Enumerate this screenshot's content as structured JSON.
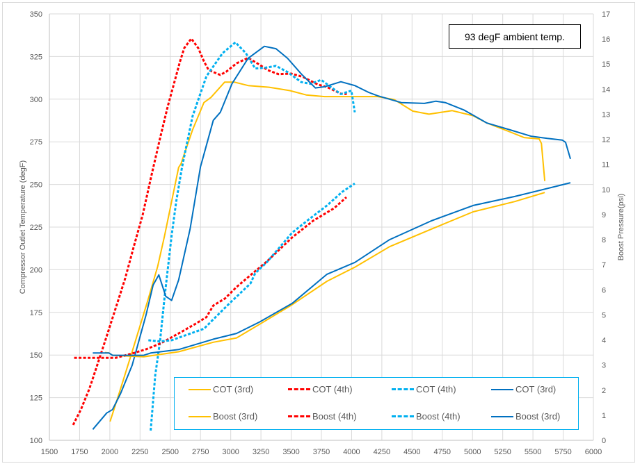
{
  "annotation": "93 degF ambient temp.",
  "colors": {
    "yellow": "#ffc000",
    "red": "#ff0000",
    "cyan": "#00b0f0",
    "blue": "#0070c0",
    "grid": "#d9d9d9"
  },
  "chart_data": {
    "type": "line",
    "title": "",
    "xlabel": "",
    "ylabel": "Compressor Outlet Temperature (degF)",
    "y2label": "Boost Pressure(psi)",
    "xlim": [
      1500,
      6000
    ],
    "ylim": [
      100,
      350
    ],
    "y2lim": [
      0,
      17
    ],
    "grid": true,
    "legend_position": "bottom-right",
    "xticks": [
      "1500",
      "1750",
      "2000",
      "2250",
      "2500",
      "2750",
      "3000",
      "3250",
      "3500",
      "3750",
      "4000",
      "4250",
      "4500",
      "4750",
      "5000",
      "5250",
      "5500",
      "5750",
      "6000"
    ],
    "yticks": [
      "100",
      "125",
      "150",
      "175",
      "200",
      "225",
      "250",
      "275",
      "300",
      "325",
      "350"
    ],
    "y2ticks": [
      "0",
      "1",
      "2",
      "3",
      "4",
      "5",
      "6",
      "7",
      "8",
      "9",
      "10",
      "11",
      "12",
      "13",
      "14",
      "15",
      "16",
      "17"
    ],
    "series": [
      {
        "name": "COT (3rd)",
        "axis": "left",
        "color": "#ffc000",
        "dashed": false,
        "points": [
          [
            2002,
            111
          ],
          [
            2070,
            126
          ],
          [
            2185,
            152
          ],
          [
            2318,
            183
          ],
          [
            2396,
            202
          ],
          [
            2453,
            220
          ],
          [
            2511,
            240
          ],
          [
            2569,
            260
          ],
          [
            2588,
            262
          ],
          [
            2684,
            282
          ],
          [
            2778,
            298
          ],
          [
            2836,
            301
          ],
          [
            2950,
            310
          ],
          [
            3029,
            310
          ],
          [
            3144,
            308
          ],
          [
            3317,
            307
          ],
          [
            3490,
            305
          ],
          [
            3624,
            302.5
          ],
          [
            3777,
            301.5
          ],
          [
            3969,
            301.5
          ],
          [
            4216,
            301.5
          ],
          [
            4352,
            299.8
          ],
          [
            4506,
            293
          ],
          [
            4640,
            291.2
          ],
          [
            4832,
            293.3
          ],
          [
            5005,
            290.3
          ],
          [
            5120,
            286
          ],
          [
            5311,
            280.8
          ],
          [
            5427,
            277.5
          ],
          [
            5552,
            276.7
          ],
          [
            5570,
            274
          ],
          [
            5598,
            252
          ]
        ]
      },
      {
        "name": "COT (4th)",
        "axis": "left",
        "color": "#ff0000",
        "dashed": true,
        "points": [
          [
            1696,
            109
          ],
          [
            1760,
            118
          ],
          [
            1830,
            130
          ],
          [
            1900,
            145
          ],
          [
            1983,
            163
          ],
          [
            2060,
            180
          ],
          [
            2127,
            195
          ],
          [
            2200,
            214
          ],
          [
            2271,
            232
          ],
          [
            2340,
            254
          ],
          [
            2415,
            277
          ],
          [
            2480,
            296
          ],
          [
            2530,
            309
          ],
          [
            2580,
            322
          ],
          [
            2616,
            330
          ],
          [
            2674,
            335.5
          ],
          [
            2731,
            330
          ],
          [
            2780,
            322
          ],
          [
            2818,
            317
          ],
          [
            2914,
            314.2
          ],
          [
            2961,
            316
          ],
          [
            3048,
            321
          ],
          [
            3144,
            324.2
          ],
          [
            3220,
            321
          ],
          [
            3307,
            317
          ],
          [
            3393,
            314.7
          ],
          [
            3500,
            315
          ],
          [
            3600,
            313
          ],
          [
            3720,
            308.6
          ],
          [
            3800,
            307
          ],
          [
            3911,
            303.2
          ],
          [
            3960,
            303
          ]
        ]
      },
      {
        "name": "COT (4th)",
        "axis": "left",
        "color": "#00b0f0",
        "dashed": true,
        "points": [
          [
            2338,
            105.7
          ],
          [
            2375,
            138
          ],
          [
            2415,
            158
          ],
          [
            2453,
            184
          ],
          [
            2511,
            220
          ],
          [
            2549,
            240
          ],
          [
            2597,
            260
          ],
          [
            2684,
            290
          ],
          [
            2799,
            313.4
          ],
          [
            2933,
            327
          ],
          [
            3039,
            333.3
          ],
          [
            3125,
            327
          ],
          [
            3202,
            318
          ],
          [
            3290,
            318.5
          ],
          [
            3374,
            319.5
          ],
          [
            3468,
            316
          ],
          [
            3583,
            310
          ],
          [
            3660,
            309
          ],
          [
            3748,
            311.3
          ],
          [
            3830,
            307
          ],
          [
            3911,
            303
          ],
          [
            3998,
            305
          ],
          [
            4026,
            292.3
          ]
        ]
      },
      {
        "name": "COT (3rd)",
        "axis": "left",
        "color": "#0070c0",
        "dashed": false,
        "points": [
          [
            1859,
            106.4
          ],
          [
            1974,
            116
          ],
          [
            2022,
            118
          ],
          [
            2089,
            127.5
          ],
          [
            2185,
            144
          ],
          [
            2300,
            173.6
          ],
          [
            2358,
            191
          ],
          [
            2405,
            197
          ],
          [
            2463,
            184.4
          ],
          [
            2511,
            182
          ],
          [
            2569,
            194
          ],
          [
            2664,
            224
          ],
          [
            2750,
            260.4
          ],
          [
            2760,
            263
          ],
          [
            2856,
            287.6
          ],
          [
            2914,
            292.3
          ],
          [
            3010,
            309
          ],
          [
            3144,
            324
          ],
          [
            3278,
            331
          ],
          [
            3374,
            329.6
          ],
          [
            3470,
            324
          ],
          [
            3585,
            314.7
          ],
          [
            3700,
            306.6
          ],
          [
            3777,
            307.3
          ],
          [
            3911,
            310.2
          ],
          [
            4026,
            308
          ],
          [
            4141,
            304
          ],
          [
            4216,
            302
          ],
          [
            4410,
            298
          ],
          [
            4602,
            297.5
          ],
          [
            4698,
            298.8
          ],
          [
            4775,
            298
          ],
          [
            4928,
            293.7
          ],
          [
            5120,
            286
          ],
          [
            5311,
            282
          ],
          [
            5483,
            278.3
          ],
          [
            5619,
            277
          ],
          [
            5743,
            276
          ],
          [
            5770,
            274.7
          ],
          [
            5810,
            265
          ]
        ]
      },
      {
        "name": "Boost (3rd)",
        "axis": "right",
        "color": "#ffc000",
        "dashed": false,
        "points": [
          [
            1960,
            3.5
          ],
          [
            1993,
            3.48
          ],
          [
            2022,
            3.39
          ],
          [
            2281,
            3.33
          ],
          [
            2569,
            3.53
          ],
          [
            2856,
            3.91
          ],
          [
            3048,
            4.08
          ],
          [
            3240,
            4.63
          ],
          [
            3509,
            5.41
          ],
          [
            3796,
            6.34
          ],
          [
            4026,
            6.9
          ],
          [
            4314,
            7.72
          ],
          [
            4659,
            8.42
          ],
          [
            5005,
            9.11
          ],
          [
            5350,
            9.52
          ],
          [
            5598,
            9.88
          ]
        ]
      },
      {
        "name": "Boost (4th)",
        "axis": "right",
        "color": "#ff0000",
        "dashed": true,
        "points": [
          [
            1705,
            3.29
          ],
          [
            2051,
            3.29
          ],
          [
            2185,
            3.46
          ],
          [
            2300,
            3.63
          ],
          [
            2415,
            3.85
          ],
          [
            2569,
            4.26
          ],
          [
            2703,
            4.63
          ],
          [
            2799,
            4.91
          ],
          [
            2856,
            5.37
          ],
          [
            2952,
            5.65
          ],
          [
            3048,
            6.11
          ],
          [
            3182,
            6.66
          ],
          [
            3297,
            7.12
          ],
          [
            3509,
            8.09
          ],
          [
            3681,
            8.75
          ],
          [
            3854,
            9.25
          ],
          [
            3957,
            9.69
          ]
        ]
      },
      {
        "name": "Boost (4th)",
        "axis": "right",
        "color": "#00b0f0",
        "dashed": true,
        "points": [
          [
            2319,
            3.99
          ],
          [
            2415,
            3.94
          ],
          [
            2511,
            3.99
          ],
          [
            2645,
            4.22
          ],
          [
            2779,
            4.45
          ],
          [
            2856,
            4.82
          ],
          [
            2990,
            5.46
          ],
          [
            3163,
            6.25
          ],
          [
            3202,
            6.66
          ],
          [
            3297,
            7.09
          ],
          [
            3509,
            8.28
          ],
          [
            3652,
            8.83
          ],
          [
            3796,
            9.36
          ],
          [
            3923,
            9.91
          ],
          [
            4026,
            10.24
          ]
        ]
      },
      {
        "name": "Boost (3rd)",
        "axis": "right",
        "color": "#0070c0",
        "dashed": false,
        "points": [
          [
            1859,
            3.48
          ],
          [
            1993,
            3.48
          ],
          [
            2022,
            3.39
          ],
          [
            2281,
            3.39
          ],
          [
            2338,
            3.48
          ],
          [
            2569,
            3.62
          ],
          [
            2856,
            4.03
          ],
          [
            3048,
            4.26
          ],
          [
            3240,
            4.72
          ],
          [
            3509,
            5.46
          ],
          [
            3796,
            6.62
          ],
          [
            4026,
            7.09
          ],
          [
            4314,
            8.0
          ],
          [
            4659,
            8.75
          ],
          [
            5005,
            9.36
          ],
          [
            5350,
            9.72
          ],
          [
            5695,
            10.13
          ],
          [
            5810,
            10.27
          ]
        ]
      }
    ]
  }
}
